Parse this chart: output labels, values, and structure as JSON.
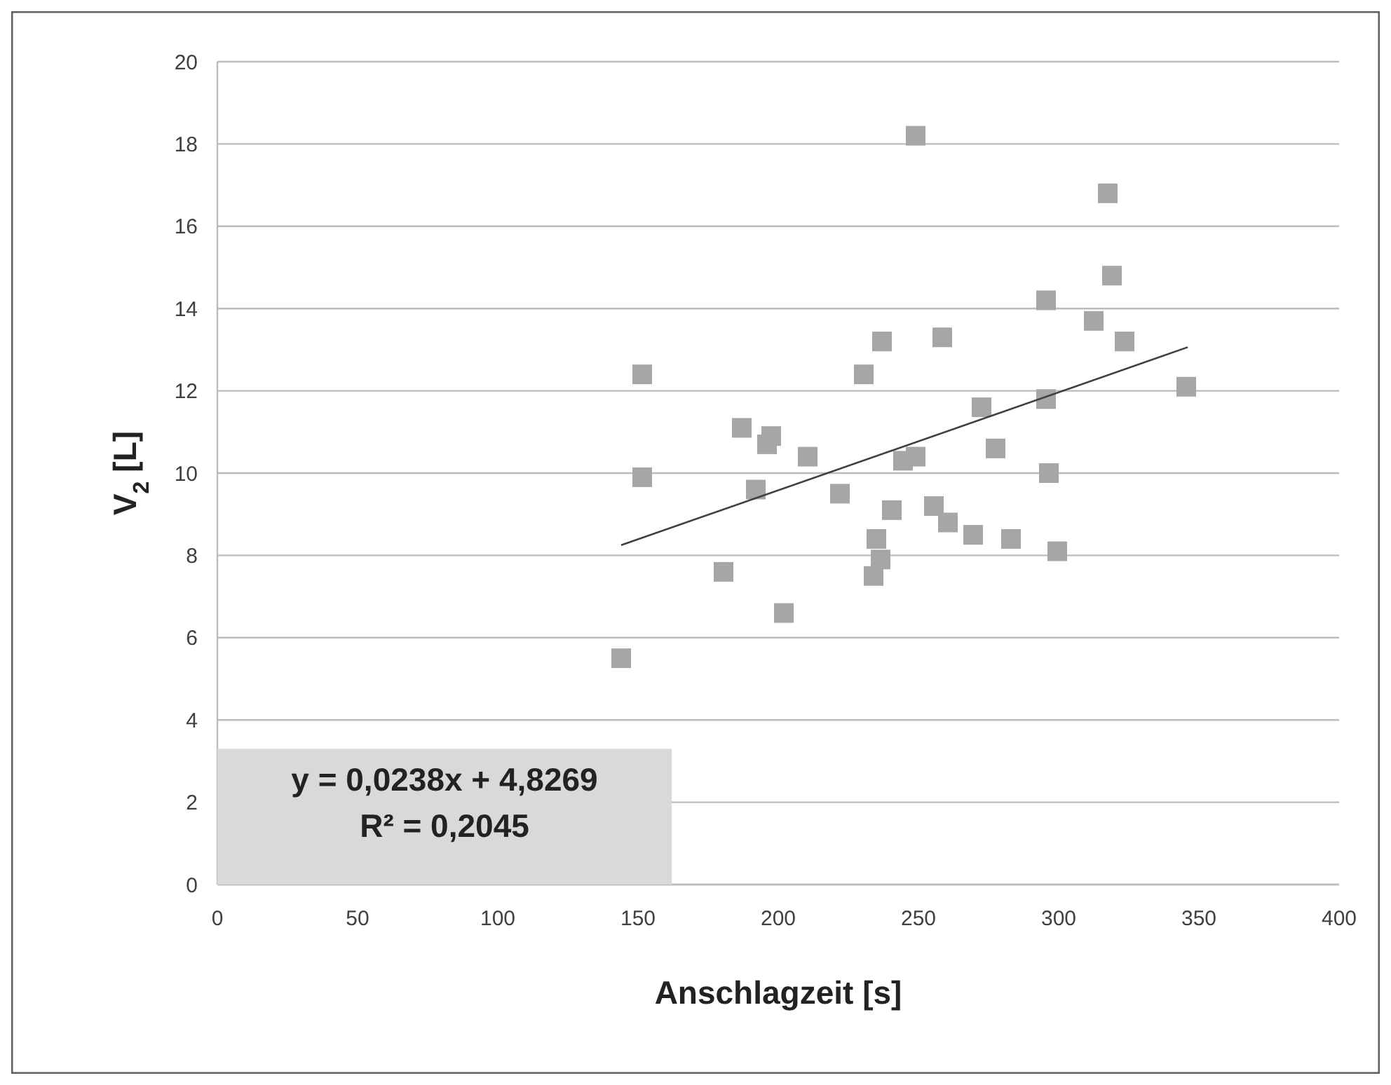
{
  "chart_data": {
    "type": "scatter",
    "xlabel": "Anschlagzeit [s]",
    "ylabel": "V$_{2}$  [L]",
    "xlim": [
      0,
      400
    ],
    "xticks": [
      0,
      50,
      100,
      150,
      200,
      250,
      300,
      350,
      400
    ],
    "ylim": [
      0,
      20
    ],
    "yticks": [
      0,
      2,
      4,
      6,
      8,
      10,
      12,
      14,
      16,
      18,
      20
    ],
    "grid": "y",
    "marker": "square",
    "series": [
      {
        "color": "#a6a6a6",
        "x": [
          144,
          151.5,
          151.5,
          180.5,
          187,
          192,
          196,
          197.5,
          202,
          210.5,
          222,
          230.5,
          234,
          235,
          236.5,
          237,
          240.5,
          244.5,
          249,
          249,
          255.5,
          258.5,
          260.5,
          269.5,
          272.5,
          277.5,
          283,
          295.5,
          295.5,
          296.5,
          299.5,
          312.5,
          317.5,
          319,
          323.5,
          345.5
        ],
        "values": [
          5.5,
          12.4,
          9.9,
          7.6,
          11.1,
          9.6,
          10.7,
          10.9,
          6.6,
          10.4,
          9.5,
          12.4,
          7.5,
          8.4,
          7.9,
          13.2,
          9.1,
          10.3,
          18.2,
          10.4,
          9.2,
          13.3,
          8.8,
          8.5,
          11.6,
          10.6,
          8.4,
          14.2,
          11.8,
          10.0,
          8.1,
          13.7,
          16.8,
          14.8,
          13.2,
          12.1
        ]
      },
      {
        "type": "line",
        "color": "#404040",
        "marker": "none",
        "x": [
          144,
          346
        ],
        "values": [
          8.25,
          13.06
        ]
      }
    ],
    "annotations": [
      "y = 0,0238x + 4,8269",
      "R² = 0,2045"
    ]
  }
}
